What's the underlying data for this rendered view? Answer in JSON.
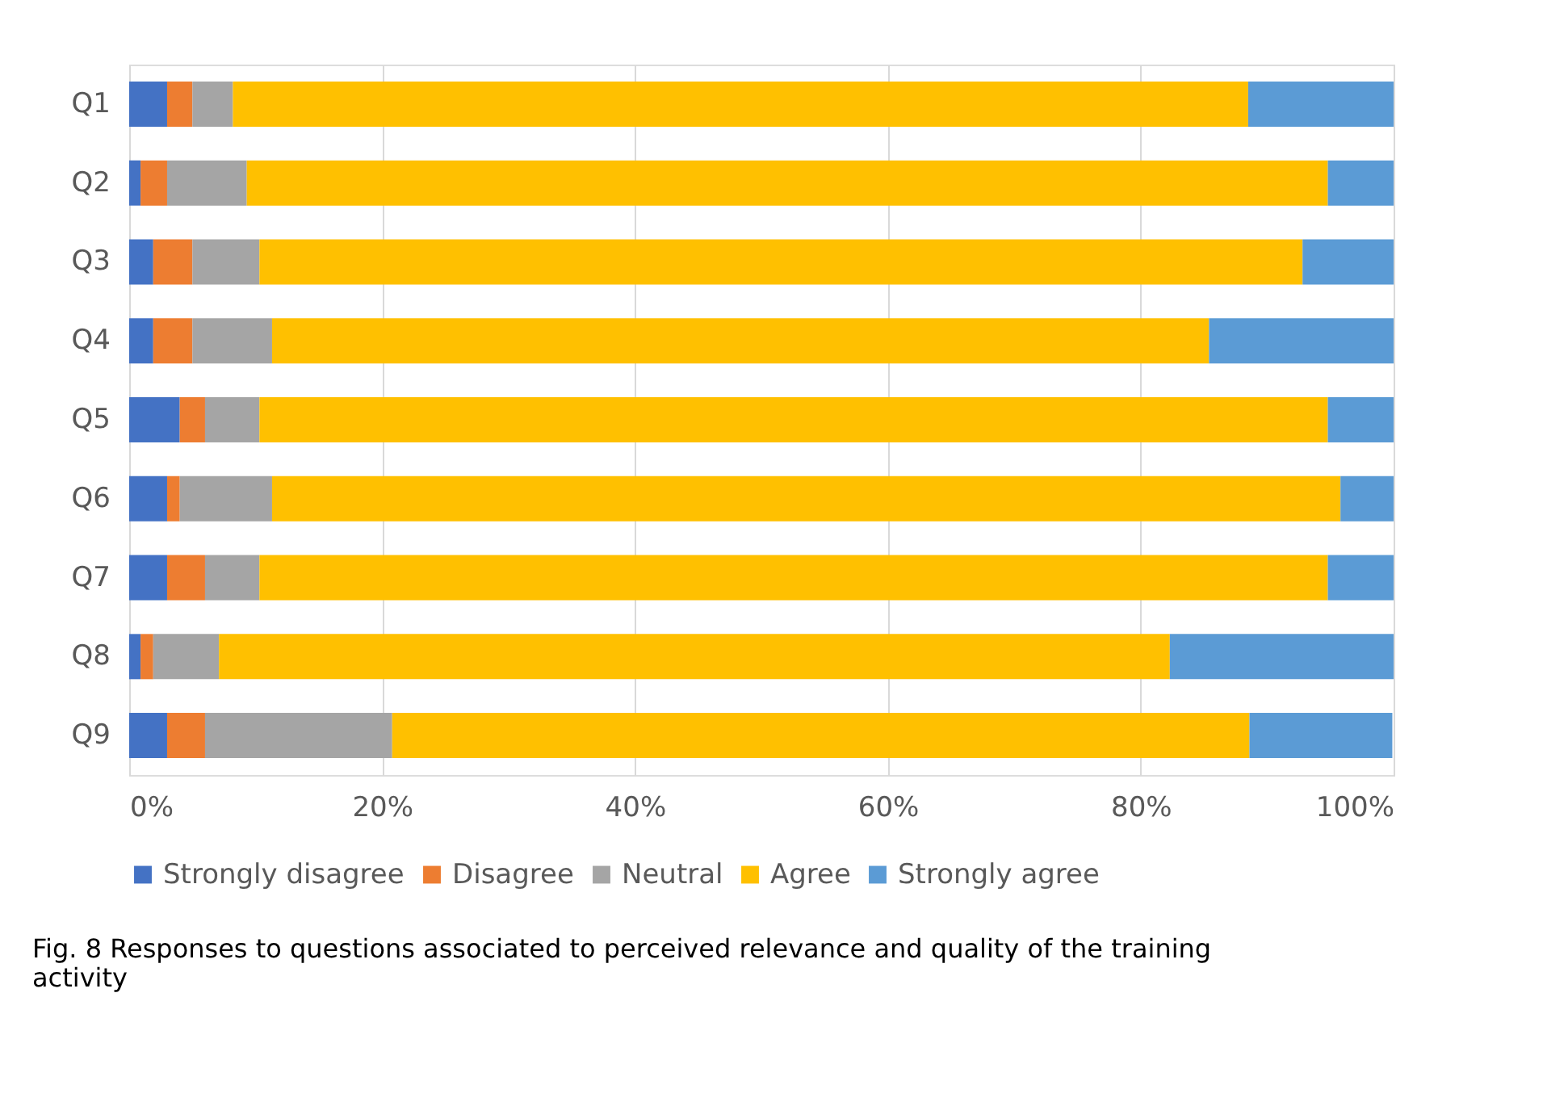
{
  "chart_data": {
    "type": "bar",
    "orientation": "horizontal",
    "stacked": true,
    "categories": [
      "Q1",
      "Q2",
      "Q3",
      "Q4",
      "Q5",
      "Q6",
      "Q7",
      "Q8",
      "Q9"
    ],
    "series": [
      {
        "name": "Strongly disagree",
        "color": "#4472c4",
        "values": [
          3,
          0.9,
          1.9,
          1.9,
          4,
          3,
          3,
          0.9,
          3
        ]
      },
      {
        "name": "Disagree",
        "color": "#ed7d31",
        "values": [
          2,
          2.1,
          3.1,
          3.1,
          2,
          1,
          3,
          1,
          3
        ]
      },
      {
        "name": "Neutral",
        "color": "#a5a5a5",
        "values": [
          3.2,
          6.3,
          5.3,
          6.3,
          4.3,
          7.3,
          4.3,
          5.2,
          14.8
        ]
      },
      {
        "name": "Agree",
        "color": "#ffc000",
        "values": [
          80.3,
          85.5,
          82.5,
          74.1,
          84.5,
          84.5,
          84.5,
          75.2,
          67.8
        ]
      },
      {
        "name": "Strongly agree",
        "color": "#5b9bd5",
        "values": [
          11.5,
          5.2,
          7.2,
          14.6,
          5.2,
          4.2,
          5.2,
          17.7,
          11.3
        ]
      }
    ],
    "xlim": [
      0,
      100
    ],
    "xticks": [
      {
        "value": 0,
        "label": "0%"
      },
      {
        "value": 20,
        "label": "20%"
      },
      {
        "value": 40,
        "label": "40%"
      },
      {
        "value": 60,
        "label": "60%"
      },
      {
        "value": 80,
        "label": "80%"
      },
      {
        "value": 100,
        "label": "100%"
      }
    ],
    "grid": "x",
    "legend": "bottom",
    "annotations": [
      "Fig. 8 Responses to questions associated to perceived relevance and quality of the training activity"
    ]
  }
}
